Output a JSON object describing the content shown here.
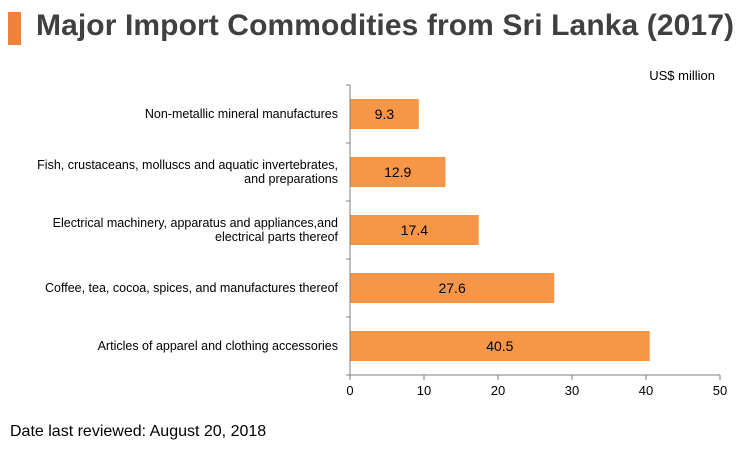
{
  "title": "Major Import Commodities from Sri Lanka (2017)",
  "unit_label": "US$ million",
  "footnote": "Date last reviewed: August 20, 2018",
  "colors": {
    "accent": "#f0833a",
    "bar": "#f79646",
    "axis": "#7f7f7f"
  },
  "chart_data": {
    "type": "bar",
    "orientation": "horizontal",
    "categories": [
      [
        "Non-metallic mineral manufactures"
      ],
      [
        "Fish, crustaceans, molluscs and aquatic invertebrates,",
        "and preparations"
      ],
      [
        "Electrical machinery, apparatus and appliances,and",
        "electrical parts thereof"
      ],
      [
        "Coffee, tea, cocoa, spices, and manufactures thereof"
      ],
      [
        "Articles of apparel and clothing accessories"
      ]
    ],
    "values": [
      9.3,
      12.9,
      17.4,
      27.6,
      40.5
    ],
    "value_labels": [
      "9.3",
      "12.9",
      "17.4",
      "27.6",
      "40.5"
    ],
    "xlim": [
      0,
      50
    ],
    "xticks": [
      0,
      10,
      20,
      30,
      40,
      50
    ],
    "grid": false,
    "legend": "none"
  }
}
